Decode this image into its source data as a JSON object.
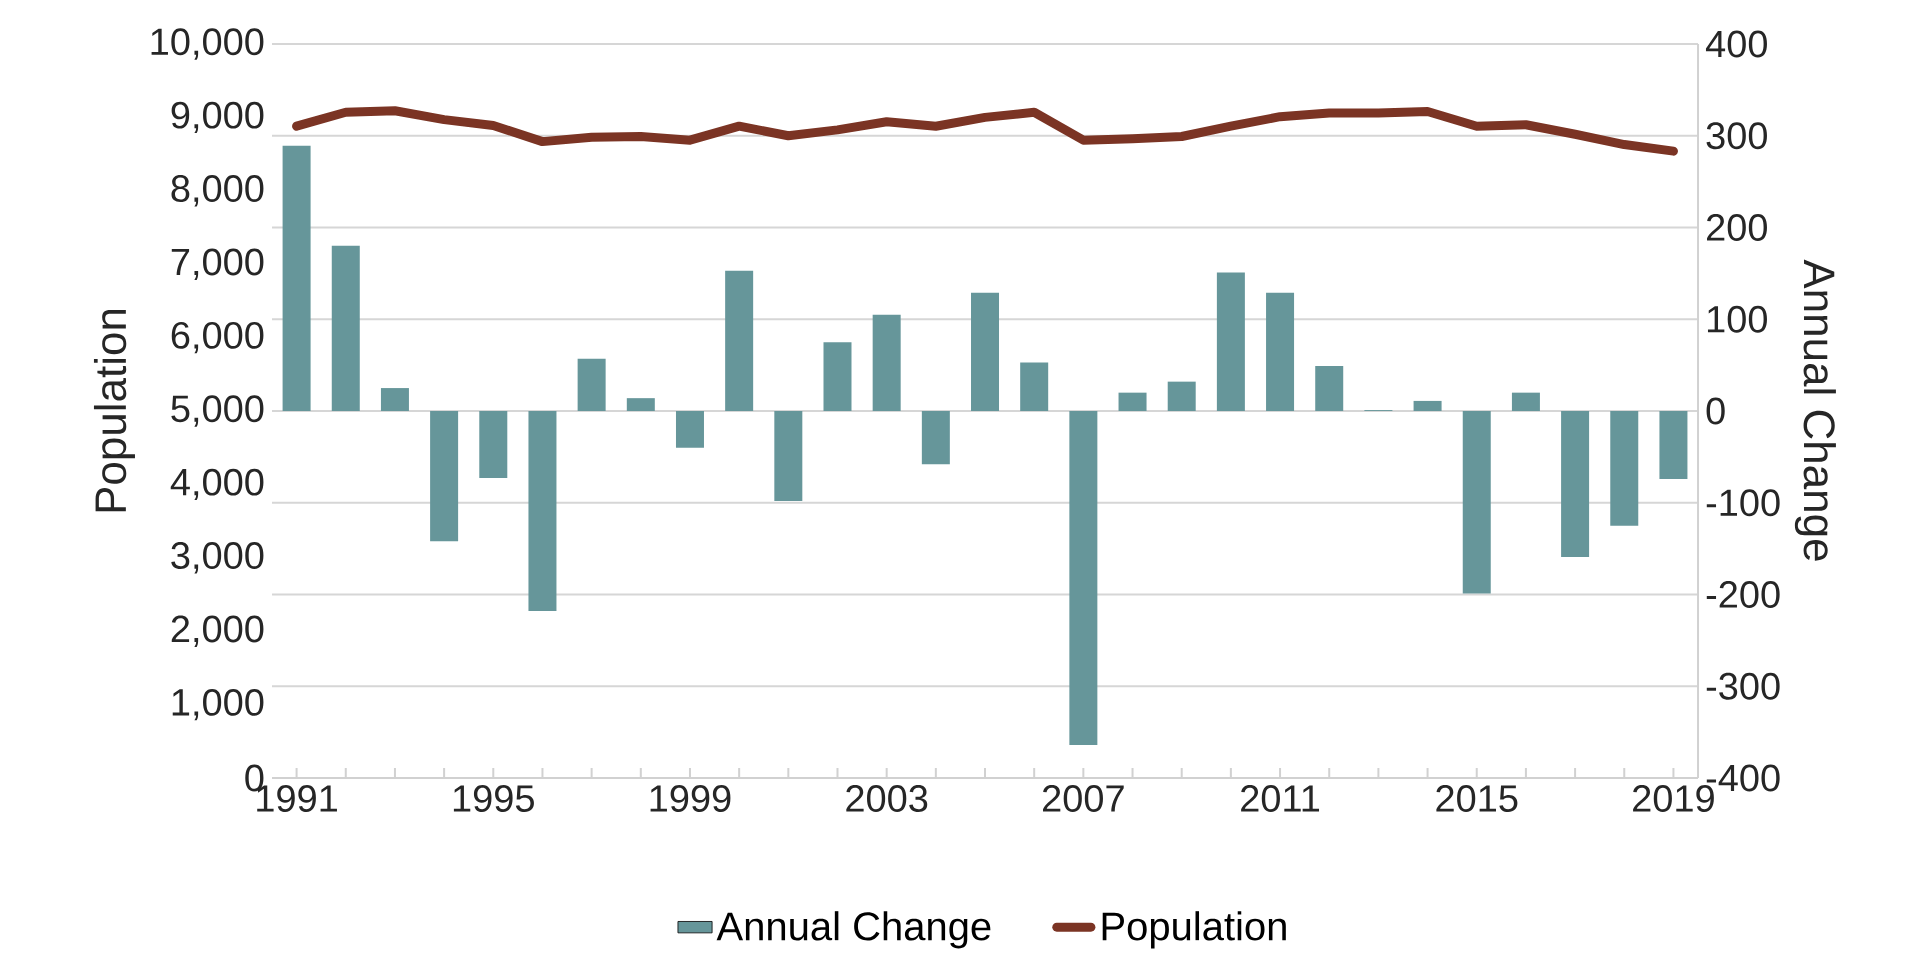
{
  "chart_data": {
    "type": "bar",
    "ylabel": "Population",
    "y2label": "Annual Change",
    "x": [
      1991,
      1992,
      1993,
      1994,
      1995,
      1996,
      1997,
      1998,
      1999,
      2000,
      2001,
      2002,
      2003,
      2004,
      2005,
      2006,
      2007,
      2008,
      2009,
      2010,
      2011,
      2012,
      2013,
      2014,
      2015,
      2016,
      2017,
      2018,
      2019
    ],
    "series": [
      {
        "name": "Annual Change",
        "axis": "y2",
        "color": "#66969a",
        "values": [
          289,
          180,
          25,
          -142,
          -73,
          -218,
          57,
          14,
          -40,
          153,
          -98,
          75,
          105,
          -58,
          129,
          53,
          -364,
          20,
          32,
          151,
          129,
          49,
          1,
          11,
          -199,
          20,
          -159,
          -125,
          -74
        ]
      },
      {
        "name": "Population",
        "type": "line",
        "axis": "y",
        "color": "#7b3424",
        "values": [
          8880,
          9070,
          9090,
          8970,
          8890,
          8670,
          8730,
          8740,
          8690,
          8880,
          8750,
          8830,
          8940,
          8880,
          9000,
          9070,
          8690,
          8710,
          8740,
          8880,
          9010,
          9060,
          9060,
          9080,
          8880,
          8900,
          8770,
          8630,
          8540
        ]
      }
    ],
    "xlim": [
      1990.5,
      2019.5
    ],
    "xticks": [
      1991,
      {
        "value": 1992,
        "label": null
      },
      {
        "value": 1993,
        "label": null
      },
      {
        "value": 1994,
        "label": null
      },
      1995,
      {
        "value": 1996,
        "label": null
      },
      {
        "value": 1997,
        "label": null
      },
      {
        "value": 1998,
        "label": null
      },
      1999,
      {
        "value": 2000,
        "label": null
      },
      {
        "value": 2001,
        "label": null
      },
      {
        "value": 2002,
        "label": null
      },
      2003,
      {
        "value": 2004,
        "label": null
      },
      {
        "value": 2005,
        "label": null
      },
      {
        "value": 2006,
        "label": null
      },
      2007,
      {
        "value": 2008,
        "label": null
      },
      {
        "value": 2009,
        "label": null
      },
      {
        "value": 2010,
        "label": null
      },
      2011,
      {
        "value": 2012,
        "label": null
      },
      {
        "value": 2013,
        "label": null
      },
      {
        "value": 2014,
        "label": null
      },
      2015,
      {
        "value": 2016,
        "label": null
      },
      {
        "value": 2017,
        "label": null
      },
      {
        "value": 2018,
        "label": null
      },
      2019
    ],
    "ylim": [
      0,
      10000
    ],
    "yticks": [
      0,
      {
        "value": 1000,
        "label": "1,000"
      },
      {
        "value": 2000,
        "label": "2,000"
      },
      {
        "value": 3000,
        "label": "3,000"
      },
      {
        "value": 4000,
        "label": "4,000"
      },
      {
        "value": 5000,
        "label": "5,000"
      },
      {
        "value": 6000,
        "label": "6,000"
      },
      {
        "value": 7000,
        "label": "7,000"
      },
      {
        "value": 8000,
        "label": "8,000"
      },
      {
        "value": 9000,
        "label": "9,000"
      },
      {
        "value": 10000,
        "label": "10,000"
      }
    ],
    "y2lim": [
      -400,
      400
    ],
    "y2ticks": [
      -400,
      -300,
      -200,
      -100,
      0,
      100,
      200,
      300,
      400
    ],
    "grid": "y",
    "legend": "bottom"
  }
}
